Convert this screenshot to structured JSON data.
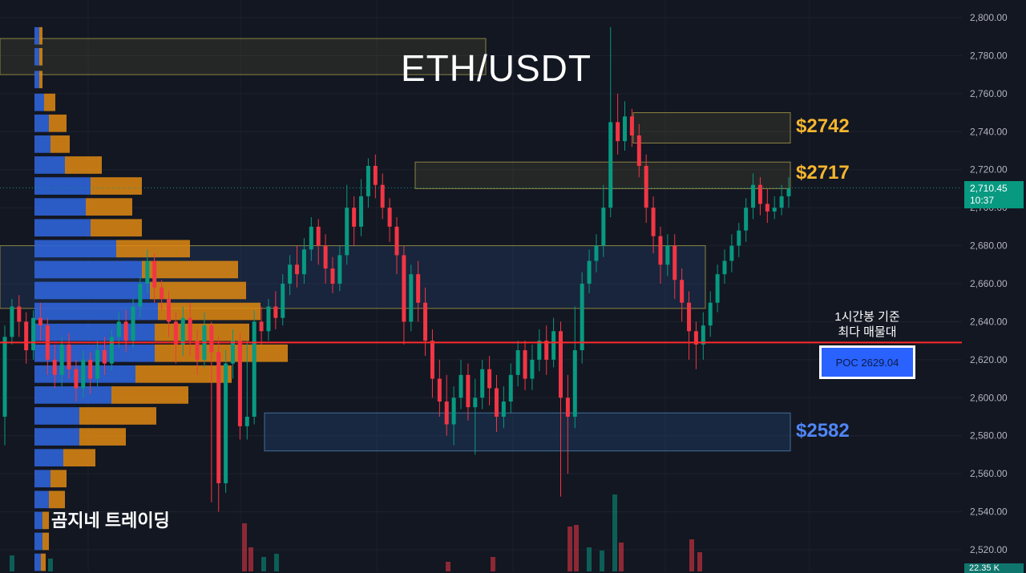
{
  "title": "ETH/USDT",
  "watermark": "곰지네 트레이딩",
  "zones": [
    {
      "label": "$2742",
      "color": "#f5b52e"
    },
    {
      "label": "$2717",
      "color": "#f5b52e"
    },
    {
      "label": "$2582",
      "color": "#4f86f7"
    }
  ],
  "poc": {
    "note_line1": "1시간봉 기준",
    "note_line2": "최다 매물대",
    "label": "POC  2629.04",
    "value": 2629.04
  },
  "last_price": {
    "value": "2,710.45",
    "countdown": "10:37"
  },
  "volume_badge": "22.35 K",
  "colors": {
    "up": "#089981",
    "down": "#f23645",
    "poc_line": "#ff2b2b",
    "background": "#131722"
  },
  "chart_data": {
    "type": "candlestick",
    "ylim": [
      2510,
      2805
    ],
    "y_ticks": [
      "2,800.00",
      "2,780.00",
      "2,760.00",
      "2,740.00",
      "2,720.00",
      "2,700.00",
      "2,680.00",
      "2,660.00",
      "2,640.00",
      "2,620.00",
      "2,600.00",
      "2,580.00",
      "2,560.00",
      "2,540.00",
      "2,520.00"
    ],
    "candles": [
      [
        2590,
        2632,
        2575,
        2638
      ],
      [
        2632,
        2648,
        2628,
        2652
      ],
      [
        2648,
        2640,
        2632,
        2654
      ],
      [
        2640,
        2625,
        2618,
        2645
      ],
      [
        2625,
        2642,
        2620,
        2646
      ],
      [
        2642,
        2638,
        2630,
        2650
      ],
      [
        2638,
        2620,
        2612,
        2642
      ],
      [
        2620,
        2612,
        2605,
        2628
      ],
      [
        2612,
        2628,
        2606,
        2632
      ],
      [
        2628,
        2615,
        2610,
        2634
      ],
      [
        2615,
        2605,
        2598,
        2620
      ],
      [
        2605,
        2620,
        2600,
        2625
      ],
      [
        2620,
        2610,
        2602,
        2624
      ],
      [
        2610,
        2625,
        2606,
        2630
      ],
      [
        2625,
        2618,
        2612,
        2632
      ],
      [
        2618,
        2632,
        2614,
        2636
      ],
      [
        2632,
        2640,
        2626,
        2645
      ],
      [
        2640,
        2630,
        2624,
        2646
      ],
      [
        2630,
        2648,
        2626,
        2652
      ],
      [
        2648,
        2660,
        2642,
        2664
      ],
      [
        2660,
        2672,
        2655,
        2678
      ],
      [
        2672,
        2658,
        2650,
        2676
      ],
      [
        2658,
        2652,
        2646,
        2662
      ],
      [
        2652,
        2640,
        2632,
        2656
      ],
      [
        2640,
        2628,
        2618,
        2645
      ],
      [
        2628,
        2642,
        2622,
        2648
      ],
      [
        2642,
        2630,
        2622,
        2650
      ],
      [
        2630,
        2620,
        2612,
        2636
      ],
      [
        2620,
        2638,
        2616,
        2645
      ],
      [
        2638,
        2624,
        2545,
        2640
      ],
      [
        2624,
        2555,
        2540,
        2632
      ],
      [
        2555,
        2618,
        2550,
        2625
      ],
      [
        2618,
        2630,
        2610,
        2636
      ],
      [
        2630,
        2585,
        2578,
        2634
      ],
      [
        2585,
        2590,
        2578,
        2630
      ],
      [
        2590,
        2640,
        2586,
        2646
      ],
      [
        2640,
        2635,
        2628,
        2648
      ],
      [
        2635,
        2648,
        2630,
        2652
      ],
      [
        2648,
        2642,
        2636,
        2656
      ],
      [
        2642,
        2660,
        2638,
        2665
      ],
      [
        2660,
        2670,
        2654,
        2675
      ],
      [
        2670,
        2665,
        2658,
        2680
      ],
      [
        2665,
        2678,
        2660,
        2684
      ],
      [
        2678,
        2690,
        2672,
        2695
      ],
      [
        2690,
        2680,
        2670,
        2694
      ],
      [
        2680,
        2668,
        2660,
        2686
      ],
      [
        2668,
        2660,
        2655,
        2674
      ],
      [
        2660,
        2675,
        2656,
        2680
      ],
      [
        2675,
        2700,
        2670,
        2712
      ],
      [
        2700,
        2690,
        2680,
        2706
      ],
      [
        2690,
        2706,
        2685,
        2715
      ],
      [
        2706,
        2722,
        2700,
        2726
      ],
      [
        2722,
        2712,
        2705,
        2728
      ],
      [
        2712,
        2700,
        2694,
        2718
      ],
      [
        2700,
        2690,
        2682,
        2705
      ],
      [
        2690,
        2675,
        2665,
        2695
      ],
      [
        2675,
        2640,
        2628,
        2680
      ],
      [
        2640,
        2665,
        2635,
        2670
      ],
      [
        2665,
        2650,
        2640,
        2672
      ],
      [
        2650,
        2630,
        2622,
        2658
      ],
      [
        2630,
        2610,
        2600,
        2636
      ],
      [
        2610,
        2598,
        2590,
        2620
      ],
      [
        2598,
        2586,
        2580,
        2612
      ],
      [
        2586,
        2600,
        2575,
        2606
      ],
      [
        2600,
        2612,
        2594,
        2620
      ],
      [
        2612,
        2595,
        2588,
        2618
      ],
      [
        2595,
        2600,
        2570,
        2610
      ],
      [
        2600,
        2615,
        2594,
        2620
      ],
      [
        2615,
        2605,
        2596,
        2622
      ],
      [
        2605,
        2590,
        2582,
        2612
      ],
      [
        2590,
        2598,
        2584,
        2606
      ],
      [
        2598,
        2612,
        2592,
        2618
      ],
      [
        2612,
        2625,
        2606,
        2630
      ],
      [
        2625,
        2610,
        2604,
        2630
      ],
      [
        2610,
        2620,
        2604,
        2628
      ],
      [
        2620,
        2630,
        2614,
        2636
      ],
      [
        2630,
        2620,
        2612,
        2638
      ],
      [
        2620,
        2635,
        2616,
        2642
      ],
      [
        2635,
        2600,
        2548,
        2640
      ],
      [
        2600,
        2590,
        2560,
        2612
      ],
      [
        2590,
        2625,
        2584,
        2648
      ],
      [
        2625,
        2660,
        2618,
        2666
      ],
      [
        2660,
        2672,
        2655,
        2678
      ],
      [
        2672,
        2680,
        2666,
        2686
      ],
      [
        2680,
        2700,
        2674,
        2712
      ],
      [
        2700,
        2745,
        2695,
        2795
      ],
      [
        2745,
        2735,
        2728,
        2760
      ],
      [
        2735,
        2748,
        2730,
        2756
      ],
      [
        2748,
        2738,
        2732,
        2752
      ],
      [
        2738,
        2722,
        2716,
        2744
      ],
      [
        2722,
        2700,
        2692,
        2728
      ],
      [
        2700,
        2685,
        2676,
        2706
      ],
      [
        2685,
        2670,
        2660,
        2690
      ],
      [
        2670,
        2680,
        2664,
        2686
      ],
      [
        2680,
        2662,
        2652,
        2686
      ],
      [
        2662,
        2650,
        2640,
        2668
      ],
      [
        2650,
        2635,
        2620,
        2656
      ],
      [
        2635,
        2628,
        2615,
        2640
      ],
      [
        2628,
        2638,
        2620,
        2645
      ],
      [
        2638,
        2650,
        2632,
        2656
      ],
      [
        2650,
        2665,
        2645,
        2670
      ],
      [
        2665,
        2672,
        2660,
        2678
      ],
      [
        2672,
        2680,
        2666,
        2686
      ],
      [
        2680,
        2688,
        2674,
        2692
      ],
      [
        2688,
        2700,
        2682,
        2705
      ],
      [
        2700,
        2712,
        2694,
        2718
      ],
      [
        2712,
        2702,
        2696,
        2716
      ],
      [
        2702,
        2698,
        2692,
        2710
      ],
      [
        2698,
        2700,
        2694,
        2706
      ],
      [
        2700,
        2706,
        2696,
        2712
      ],
      [
        2706,
        2710,
        2700,
        2716
      ]
    ]
  }
}
